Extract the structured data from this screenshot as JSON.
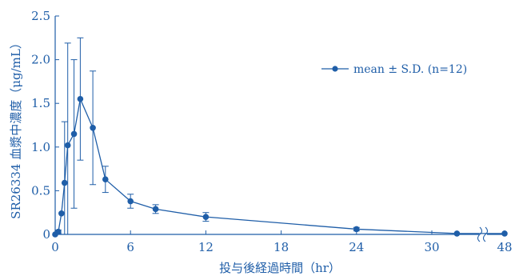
{
  "chart_data": {
    "type": "line",
    "color": "#1f5ea8",
    "ylabel": "SR26334 血漿中濃度（μg/mL）",
    "xlabel": "投与後経過時間（hr）",
    "ylim": [
      0,
      2.5
    ],
    "xlim": [
      0,
      48
    ],
    "x_axis_break": [
      32,
      48
    ],
    "grid": false,
    "legend_position": "top-right",
    "x_ticks": [
      {
        "value": 0,
        "label": "0"
      },
      {
        "value": 6,
        "label": "6"
      },
      {
        "value": 12,
        "label": "12"
      },
      {
        "value": 18,
        "label": "18"
      },
      {
        "value": 24,
        "label": "24"
      },
      {
        "value": 30,
        "label": "30"
      },
      {
        "value": 48,
        "label": "48"
      }
    ],
    "y_ticks": [
      {
        "value": 0,
        "label": "0"
      },
      {
        "value": 0.5,
        "label": "0.5"
      },
      {
        "value": 1.0,
        "label": "1.0"
      },
      {
        "value": 1.5,
        "label": "1.5"
      },
      {
        "value": 2.0,
        "label": "2.0"
      },
      {
        "value": 2.5,
        "label": "2.5"
      }
    ],
    "series": [
      {
        "name": "mean ± S.D. (n=12)",
        "points": [
          {
            "x": 0,
            "y": 0,
            "sd": 0
          },
          {
            "x": 0.25,
            "y": 0.03,
            "sd": 0.02
          },
          {
            "x": 0.5,
            "y": 0.24,
            "sd": 0
          },
          {
            "x": 0.75,
            "y": 0.59,
            "sd": 0.7
          },
          {
            "x": 1,
            "y": 1.02,
            "sd": 1.17
          },
          {
            "x": 1.5,
            "y": 1.15,
            "sd": 0.85
          },
          {
            "x": 2,
            "y": 1.55,
            "sd": 0.7
          },
          {
            "x": 3,
            "y": 1.22,
            "sd": 0.65
          },
          {
            "x": 4,
            "y": 0.63,
            "sd": 0.15
          },
          {
            "x": 6,
            "y": 0.38,
            "sd": 0.08
          },
          {
            "x": 8,
            "y": 0.29,
            "sd": 0.05
          },
          {
            "x": 12,
            "y": 0.2,
            "sd": 0.05
          },
          {
            "x": 24,
            "y": 0.06,
            "sd": 0.02
          },
          {
            "x": 32,
            "y": 0.01,
            "sd": 0.01
          },
          {
            "x": 48,
            "y": 0.01,
            "sd": 0.01
          }
        ]
      }
    ]
  }
}
